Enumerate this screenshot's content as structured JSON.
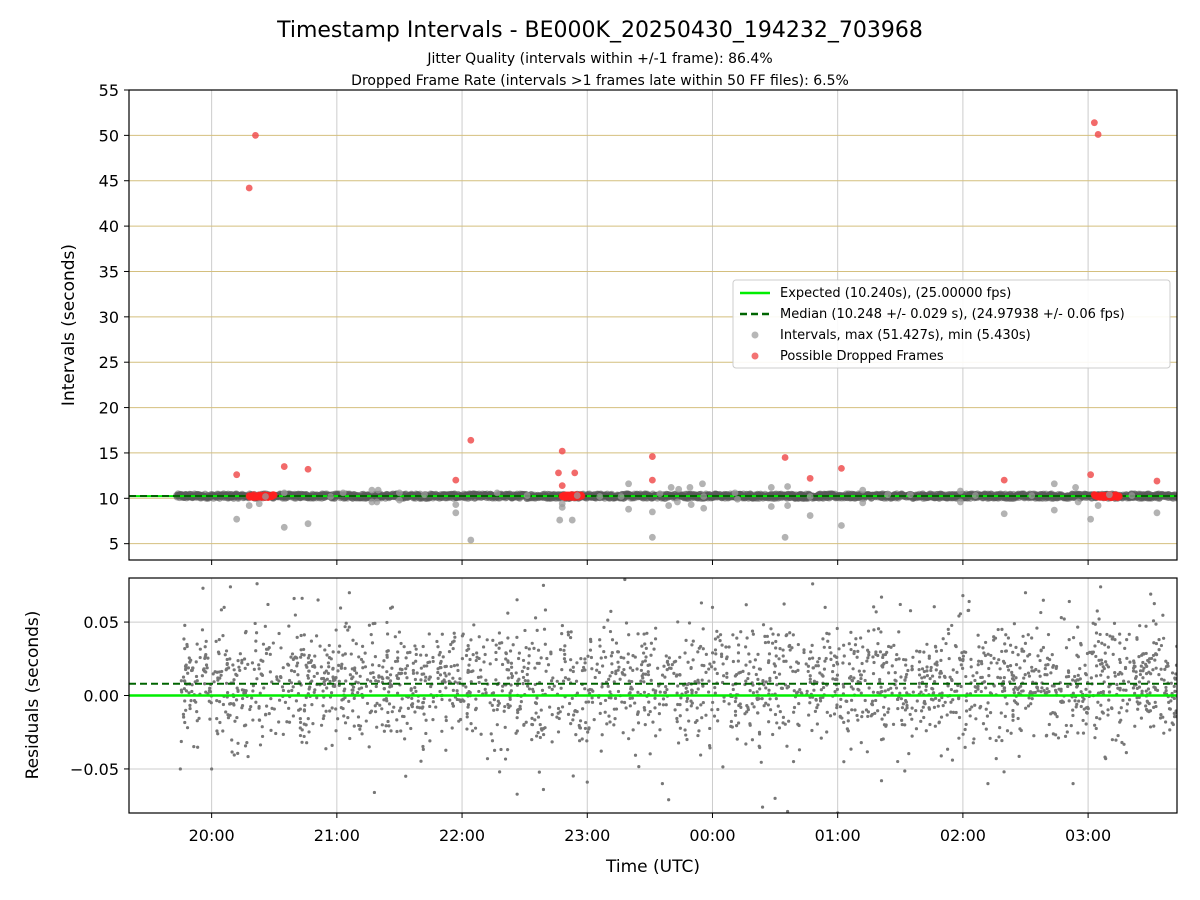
{
  "chart_data": [
    {
      "type": "scatter",
      "panel": "intervals",
      "title": "Timestamp Intervals - BE000K_20250430_194232_703968",
      "subtitle_lines": [
        "Jitter Quality (intervals within +/-1 frame): 86.4%",
        "Dropped Frame Rate (intervals >1 frames late within 50 FF files): 6.5%"
      ],
      "ylabel": "Intervals (seconds)",
      "ylim": [
        3.2,
        55
      ],
      "xlim_hours": [
        19.34,
        27.71
      ],
      "yticks": [
        5,
        10,
        15,
        20,
        25,
        30,
        35,
        40,
        45,
        50,
        55
      ],
      "ytick_labels": [
        "5",
        "10",
        "15",
        "20",
        "25",
        "30",
        "35",
        "40",
        "45",
        "50",
        "55"
      ],
      "grid": {
        "x": true,
        "y": true,
        "y_color": "#d4bf7e",
        "x_color": "#cccccc"
      },
      "legend_position": "center-right",
      "series": [
        {
          "name": "Expected (10.240s), (25.00000 fps)",
          "kind": "hline",
          "y": 10.24,
          "color": "#00ee00",
          "style": "solid"
        },
        {
          "name": "Median (10.248 +/- 0.029 s), (24.97938 +/- 0.06 fps)",
          "kind": "hline",
          "y": 10.248,
          "color": "#006400",
          "style": "dashed"
        },
        {
          "name": "Intervals, max (51.427s), min (5.430s)",
          "kind": "scatter",
          "color": "#999999",
          "band": {
            "x_start": 19.72,
            "x_end": 27.71,
            "y": 10.24
          },
          "points": [
            [
              20.2,
              7.7
            ],
            [
              20.3,
              9.2
            ],
            [
              20.38,
              9.4
            ],
            [
              20.43,
              10.2
            ],
            [
              20.58,
              10.6
            ],
            [
              20.58,
              6.8
            ],
            [
              20.77,
              7.2
            ],
            [
              20.95,
              10.2
            ],
            [
              21.05,
              10.6
            ],
            [
              21.28,
              9.6
            ],
            [
              21.28,
              10.9
            ],
            [
              21.32,
              9.6
            ],
            [
              21.33,
              10.9
            ],
            [
              21.5,
              10.6
            ],
            [
              21.5,
              9.8
            ],
            [
              21.7,
              10.4
            ],
            [
              21.95,
              9.3
            ],
            [
              21.95,
              8.4
            ],
            [
              22.07,
              5.4
            ],
            [
              22.28,
              10.6
            ],
            [
              22.52,
              10.3
            ],
            [
              22.78,
              7.6
            ],
            [
              22.8,
              9.0
            ],
            [
              22.8,
              9.4
            ],
            [
              22.88,
              7.6
            ],
            [
              22.92,
              10.3
            ],
            [
              23.1,
              10.2
            ],
            [
              23.27,
              10.2
            ],
            [
              23.33,
              11.6
            ],
            [
              23.33,
              8.8
            ],
            [
              23.52,
              8.5
            ],
            [
              23.52,
              5.7
            ],
            [
              23.58,
              10.5
            ],
            [
              23.65,
              9.2
            ],
            [
              23.67,
              11.2
            ],
            [
              23.72,
              9.6
            ],
            [
              23.73,
              11.0
            ],
            [
              23.82,
              11.2
            ],
            [
              23.83,
              9.3
            ],
            [
              23.92,
              11.6
            ],
            [
              23.93,
              10.2
            ],
            [
              23.93,
              8.9
            ],
            [
              24.18,
              10.6
            ],
            [
              24.2,
              9.9
            ],
            [
              24.47,
              9.1
            ],
            [
              24.47,
              11.2
            ],
            [
              24.58,
              5.7
            ],
            [
              24.6,
              11.3
            ],
            [
              24.6,
              9.2
            ],
            [
              24.78,
              10.2
            ],
            [
              24.78,
              8.1
            ],
            [
              25.03,
              7.0
            ],
            [
              25.2,
              10.9
            ],
            [
              25.2,
              9.5
            ],
            [
              25.4,
              10.4
            ],
            [
              25.58,
              10.4
            ],
            [
              25.98,
              9.6
            ],
            [
              25.98,
              10.8
            ],
            [
              26.1,
              10.3
            ],
            [
              26.33,
              8.3
            ],
            [
              26.55,
              10.3
            ],
            [
              26.73,
              11.6
            ],
            [
              26.73,
              8.7
            ],
            [
              26.9,
              11.2
            ],
            [
              26.92,
              9.6
            ],
            [
              27.02,
              7.7
            ],
            [
              27.08,
              9.2
            ],
            [
              27.17,
              10.4
            ],
            [
              27.35,
              10.3
            ],
            [
              27.55,
              8.4
            ]
          ]
        },
        {
          "name": "Possible Dropped Frames",
          "kind": "scatter",
          "color": "#f05050",
          "clusters": [
            {
              "x_start": 20.3,
              "x_end": 20.5,
              "y": 10.24
            },
            {
              "x_start": 22.8,
              "x_end": 22.96,
              "y": 10.24
            },
            {
              "x_start": 27.05,
              "x_end": 27.25,
              "y": 10.24
            }
          ],
          "points": [
            [
              20.2,
              12.6
            ],
            [
              20.3,
              44.2
            ],
            [
              20.35,
              50.0
            ],
            [
              20.58,
              13.5
            ],
            [
              20.77,
              13.2
            ],
            [
              21.95,
              12.0
            ],
            [
              22.07,
              16.4
            ],
            [
              22.77,
              12.8
            ],
            [
              22.8,
              15.2
            ],
            [
              22.8,
              11.4
            ],
            [
              22.9,
              12.8
            ],
            [
              23.52,
              14.6
            ],
            [
              23.52,
              12.0
            ],
            [
              24.58,
              14.5
            ],
            [
              24.78,
              12.2
            ],
            [
              25.03,
              13.3
            ],
            [
              26.33,
              12.0
            ],
            [
              27.02,
              12.6
            ],
            [
              27.05,
              51.4
            ],
            [
              27.08,
              50.1
            ],
            [
              27.55,
              11.9
            ]
          ]
        }
      ]
    },
    {
      "type": "scatter",
      "panel": "residuals",
      "xlabel": "Time (UTC)",
      "ylabel": "Residuals (seconds)",
      "ylim": [
        -0.08,
        0.08
      ],
      "xlim_hours": [
        19.34,
        27.71
      ],
      "yticks": [
        -0.05,
        0.0,
        0.05
      ],
      "ytick_labels": [
        "−0.05",
        "0.00",
        "0.05"
      ],
      "xticks_hours": [
        20,
        21,
        22,
        23,
        24,
        25,
        26,
        27
      ],
      "xtick_labels": [
        "20:00",
        "21:00",
        "22:00",
        "23:00",
        "00:00",
        "01:00",
        "02:00",
        "03:00"
      ],
      "grid": {
        "x": true,
        "y": true,
        "color": "#cccccc"
      },
      "series": [
        {
          "kind": "hline",
          "y": 0.0,
          "color": "#00ee00",
          "style": "solid"
        },
        {
          "kind": "hline",
          "y": 0.008,
          "color": "#006400",
          "style": "dashed"
        },
        {
          "kind": "scatter",
          "color": "#777777",
          "cloud": {
            "x_start": 19.75,
            "x_end": 27.71,
            "mean": 0.008,
            "spread": 0.02,
            "count": 2400
          },
          "outliers": [
            [
              20.15,
              0.074
            ],
            [
              20.1,
              0.06
            ],
            [
              20.45,
              0.062
            ],
            [
              20.85,
              0.065
            ],
            [
              21.1,
              0.07
            ],
            [
              21.3,
              -0.066
            ],
            [
              21.55,
              -0.055
            ],
            [
              22.3,
              -0.052
            ],
            [
              22.65,
              0.075
            ],
            [
              22.65,
              -0.064
            ],
            [
              23.0,
              -0.059
            ],
            [
              23.3,
              0.079
            ],
            [
              23.6,
              -0.06
            ],
            [
              23.65,
              -0.071
            ],
            [
              24.0,
              0.06
            ],
            [
              24.4,
              -0.076
            ],
            [
              24.5,
              -0.07
            ],
            [
              24.6,
              -0.079
            ],
            [
              24.65,
              -0.083
            ],
            [
              24.8,
              0.076
            ],
            [
              24.9,
              0.06
            ],
            [
              25.0,
              -0.08
            ],
            [
              25.35,
              0.067
            ],
            [
              25.35,
              -0.058
            ],
            [
              26.0,
              0.068
            ],
            [
              26.05,
              0.064
            ],
            [
              26.2,
              -0.06
            ],
            [
              26.5,
              0.07
            ],
            [
              26.85,
              0.064
            ],
            [
              26.88,
              -0.06
            ],
            [
              27.1,
              0.074
            ],
            [
              27.5,
              0.069
            ],
            [
              20.0,
              -0.05
            ],
            [
              19.75,
              -0.05
            ],
            [
              25.5,
              0.062
            ]
          ]
        }
      ]
    }
  ]
}
